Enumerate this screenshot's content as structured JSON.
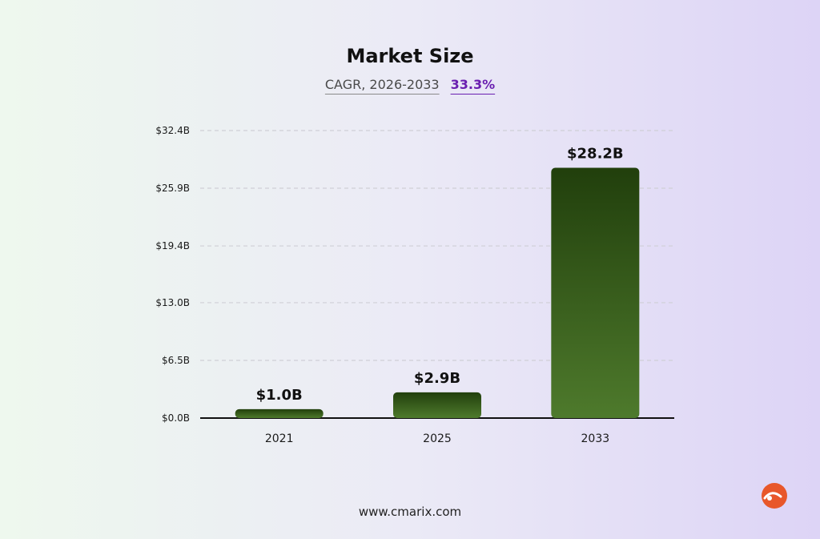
{
  "header": {
    "title": "Market Size",
    "cagr_label": "CAGR, 2026-2033",
    "cagr_value": "33.3%"
  },
  "footer": {
    "url": "www.cmarix.com"
  },
  "colors": {
    "bar_top": "#213f0c",
    "bar_bottom": "#4e7a2c",
    "accent": "#6a1fb0",
    "logo": "#e8572a"
  },
  "logo_icon": "cmarix-logo-icon",
  "chart_data": {
    "type": "bar",
    "categories": [
      "2021",
      "2025",
      "2033"
    ],
    "values": [
      1.0,
      2.9,
      28.2
    ],
    "value_labels": [
      "$1.0B",
      "$2.9B",
      "$28.2B"
    ],
    "ylim": [
      0,
      32.4
    ],
    "y_ticks": [
      0.0,
      6.5,
      13.0,
      19.4,
      25.9,
      32.4
    ],
    "y_tick_labels": [
      "$0.0B",
      "$6.5B",
      "$13.0B",
      "$19.4B",
      "$25.9B",
      "$32.4B"
    ],
    "grid": "dashed horizontal",
    "xlabel": "",
    "ylabel": ""
  }
}
